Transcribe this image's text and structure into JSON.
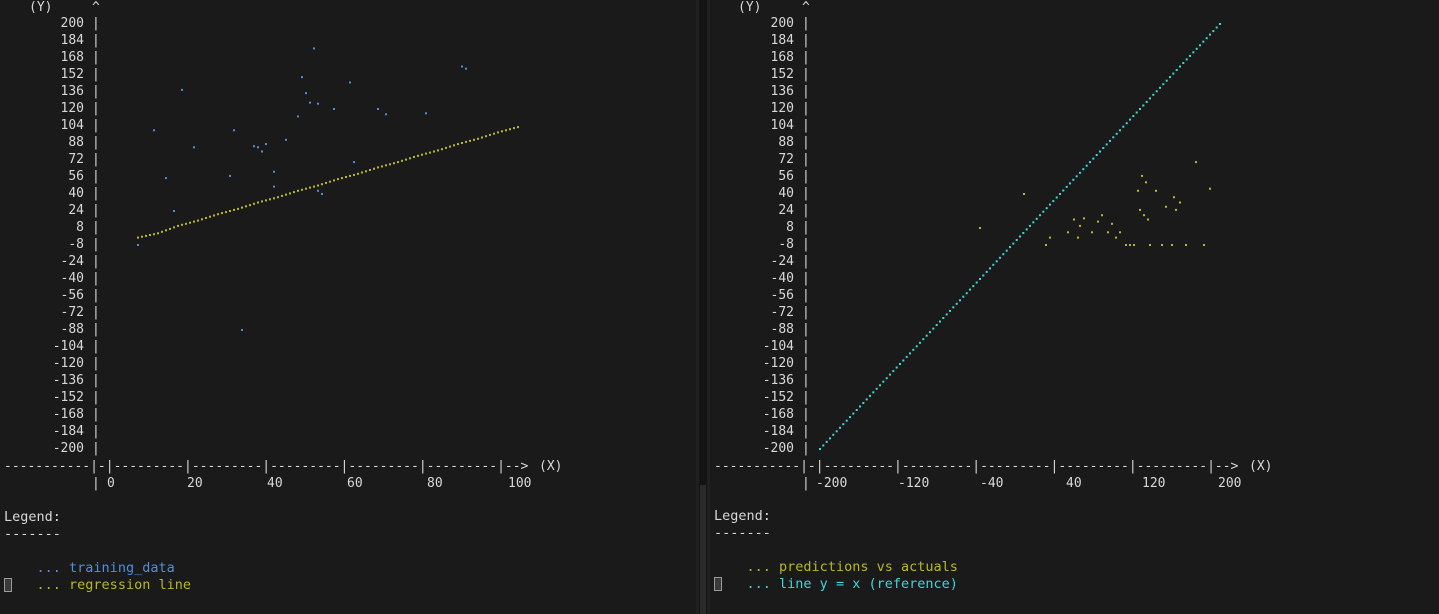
{
  "left": {
    "y_axis_label": "(Y)",
    "y_arrow": "^",
    "x_axis_label": "(X)",
    "y_ticks": [
      "200",
      "184",
      "168",
      "152",
      "136",
      "120",
      "104",
      "88",
      "72",
      "56",
      "40",
      "24",
      "8",
      "-8",
      "-24",
      "-40",
      "-56",
      "-72",
      "-88",
      "-104",
      "-120",
      "-136",
      "-152",
      "-168",
      "-184",
      "-200"
    ],
    "x_ticks": [
      "0",
      "20",
      "40",
      "60",
      "80",
      "100"
    ],
    "legend_title": "Legend:",
    "legend_rule": "-------",
    "legend_items": [
      {
        "marker": "...",
        "label": "training_data",
        "color": "#4f8fe0"
      },
      {
        "marker": "...",
        "label": "regression line",
        "color": "#b8b823"
      }
    ]
  },
  "right": {
    "y_axis_label": "(Y)",
    "y_arrow": "^",
    "x_axis_label": "(X)",
    "y_ticks": [
      "200",
      "184",
      "168",
      "152",
      "136",
      "120",
      "104",
      "88",
      "72",
      "56",
      "40",
      "24",
      "8",
      "-8",
      "-24",
      "-40",
      "-56",
      "-72",
      "-88",
      "-104",
      "-120",
      "-136",
      "-152",
      "-168",
      "-184",
      "-200"
    ],
    "x_ticks": [
      "-200",
      "-120",
      "-40",
      "40",
      "120",
      "200"
    ],
    "legend_title": "Legend:",
    "legend_rule": "-------",
    "legend_items": [
      {
        "marker": "...",
        "label": "predictions vs actuals",
        "color": "#b8b823"
      },
      {
        "marker": "...",
        "label": "line y = x (reference)",
        "color": "#3fd6d6"
      }
    ]
  },
  "chart_data": [
    {
      "type": "scatter",
      "xlim": [
        0,
        100
      ],
      "ylim": [
        -200,
        200
      ],
      "series": [
        {
          "name": "training_data",
          "color": "#4f8fe0",
          "points": [
            [
              7,
              -8
            ],
            [
              11,
              100
            ],
            [
              14,
              55
            ],
            [
              16,
              24
            ],
            [
              18,
              138
            ],
            [
              21,
              84
            ],
            [
              30,
              57
            ],
            [
              31,
              100
            ],
            [
              33,
              -88
            ],
            [
              36,
              85
            ],
            [
              39,
              87
            ],
            [
              41,
              47
            ],
            [
              44,
              91
            ],
            [
              47,
              113
            ],
            [
              48,
              150
            ],
            [
              49,
              135
            ],
            [
              50,
              126
            ],
            [
              51,
              177
            ],
            [
              52,
              43
            ],
            [
              52,
              125
            ],
            [
              53,
              40
            ],
            [
              56,
              120
            ],
            [
              60,
              145
            ],
            [
              61,
              70
            ],
            [
              67,
              120
            ],
            [
              69,
              115
            ],
            [
              79,
              116
            ],
            [
              88,
              160
            ],
            [
              89,
              158
            ],
            [
              41,
              61
            ],
            [
              37,
              84
            ],
            [
              38,
              80
            ]
          ]
        },
        {
          "name": "regression line",
          "color": "#b8b823",
          "points": [
            [
              7,
              -1
            ],
            [
              12,
              3
            ],
            [
              17,
              10
            ],
            [
              22,
              15
            ],
            [
              27,
              21
            ],
            [
              32,
              26
            ],
            [
              37,
              32
            ],
            [
              42,
              37
            ],
            [
              47,
              43
            ],
            [
              52,
              48
            ],
            [
              57,
              54
            ],
            [
              62,
              59
            ],
            [
              67,
              65
            ],
            [
              72,
              70
            ],
            [
              77,
              76
            ],
            [
              82,
              81
            ],
            [
              87,
              87
            ],
            [
              92,
              92
            ],
            [
              97,
              98
            ],
            [
              102,
              103
            ]
          ]
        }
      ]
    },
    {
      "type": "scatter",
      "xlim": [
        -200,
        200
      ],
      "ylim": [
        -200,
        200
      ],
      "series": [
        {
          "name": "predictions vs actuals",
          "color": "#b8b823",
          "points": [
            [
              -40,
              8
            ],
            [
              4,
              40
            ],
            [
              26,
              -8
            ],
            [
              30,
              -1
            ],
            [
              48,
              4
            ],
            [
              54,
              16
            ],
            [
              58,
              -1
            ],
            [
              60,
              10
            ],
            [
              64,
              17
            ],
            [
              72,
              4
            ],
            [
              78,
              14
            ],
            [
              82,
              20
            ],
            [
              88,
              4
            ],
            [
              92,
              12
            ],
            [
              96,
              -1
            ],
            [
              100,
              4
            ],
            [
              106,
              -8
            ],
            [
              110,
              -8
            ],
            [
              114,
              -8
            ],
            [
              118,
              43
            ],
            [
              120,
              25
            ],
            [
              122,
              57
            ],
            [
              124,
              20
            ],
            [
              126,
              51
            ],
            [
              128,
              16
            ],
            [
              130,
              -8
            ],
            [
              136,
              43
            ],
            [
              142,
              -8
            ],
            [
              146,
              28
            ],
            [
              152,
              -8
            ],
            [
              154,
              37
            ],
            [
              156,
              25
            ],
            [
              160,
              32
            ],
            [
              166,
              -8
            ],
            [
              176,
              70
            ],
            [
              184,
              -8
            ],
            [
              190,
              45
            ]
          ]
        },
        {
          "name": "line y = x (reference)",
          "color": "#3fd6d6",
          "points": [
            [
              -200,
              -200
            ],
            [
              -190,
              -190
            ],
            [
              -180,
              -180
            ],
            [
              -170,
              -170
            ],
            [
              -160,
              -160
            ],
            [
              -150,
              -150
            ],
            [
              -140,
              -140
            ],
            [
              -130,
              -130
            ],
            [
              -120,
              -120
            ],
            [
              -110,
              -110
            ],
            [
              -100,
              -100
            ],
            [
              -90,
              -90
            ],
            [
              -80,
              -80
            ],
            [
              -70,
              -70
            ],
            [
              -60,
              -60
            ],
            [
              -50,
              -50
            ],
            [
              -40,
              -40
            ],
            [
              -30,
              -30
            ],
            [
              -20,
              -20
            ],
            [
              -10,
              -10
            ],
            [
              0,
              0
            ],
            [
              10,
              10
            ],
            [
              20,
              20
            ],
            [
              30,
              30
            ],
            [
              40,
              40
            ],
            [
              50,
              50
            ],
            [
              60,
              60
            ],
            [
              70,
              70
            ],
            [
              80,
              80
            ],
            [
              90,
              90
            ],
            [
              100,
              100
            ],
            [
              110,
              110
            ],
            [
              120,
              120
            ],
            [
              130,
              130
            ],
            [
              140,
              140
            ],
            [
              150,
              150
            ],
            [
              160,
              160
            ],
            [
              170,
              170
            ],
            [
              180,
              180
            ],
            [
              190,
              190
            ],
            [
              200,
              200
            ]
          ]
        }
      ]
    }
  ]
}
